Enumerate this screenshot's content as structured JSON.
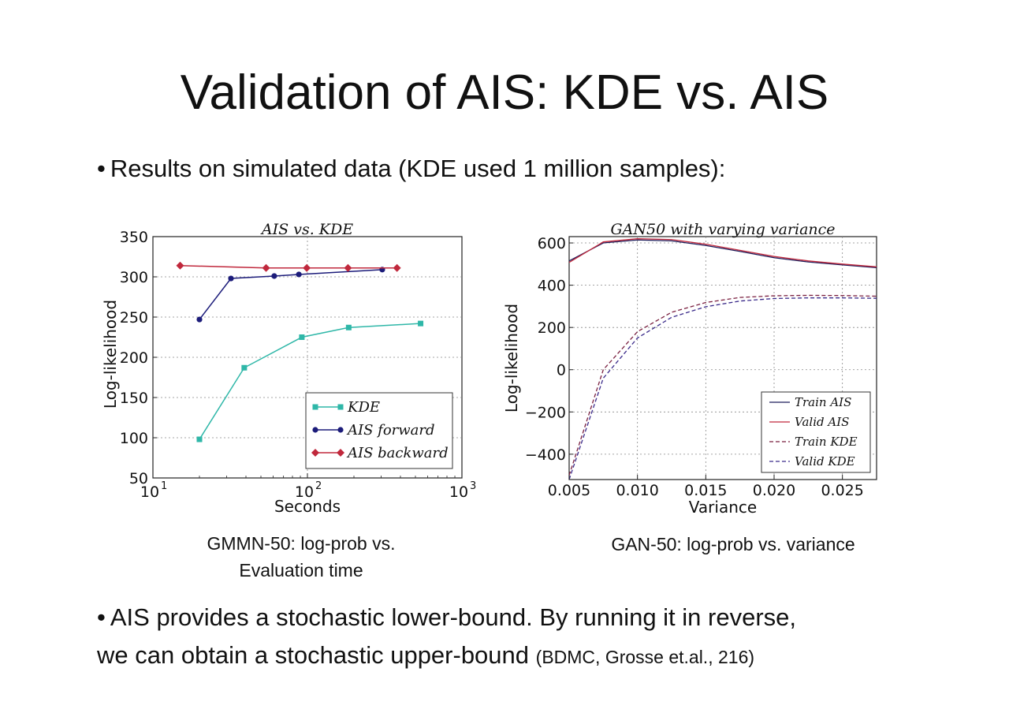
{
  "slide": {
    "title": "Validation of AIS: KDE vs. AIS",
    "bullet1": "Results on simulated data (KDE used 1 million samples):",
    "bullet2_line1": "AIS provides a stochastic lower-bound. By running it in reverse,",
    "bullet2_line2": "we can obtain a stochastic upper-bound",
    "bullet2_citation": "(BDMC, Grosse et.al., 216)",
    "bullet_symbol": "•",
    "caption_left_line1": "GMMN-50: log-prob vs.",
    "caption_left_line2": "Evaluation time",
    "caption_right": "GAN-50: log-prob vs. variance"
  },
  "chart_data": [
    {
      "type": "line",
      "title": "AIS vs. KDE",
      "xlabel": "Seconds",
      "ylabel": "Log-likelihood",
      "xscale": "log",
      "xlim": [
        10,
        1000
      ],
      "ylim": [
        50,
        350
      ],
      "xticks": [
        "10^1",
        "10^2",
        "10^3"
      ],
      "yticks": [
        "50",
        "100",
        "150",
        "200",
        "250",
        "300",
        "350"
      ],
      "grid": true,
      "legend_position": "lower-right",
      "series": [
        {
          "name": "KDE",
          "color": "#2fb7a8",
          "marker": "square",
          "x": [
            20,
            39,
            92,
            185,
            540
          ],
          "y": [
            98,
            187,
            225,
            237,
            242
          ]
        },
        {
          "name": "AIS forward",
          "color": "#1c1c7a",
          "marker": "circle",
          "x": [
            20,
            32,
            61,
            88,
            305
          ],
          "y": [
            247,
            298,
            301,
            303,
            309
          ]
        },
        {
          "name": "AIS backward",
          "color": "#c0283c",
          "marker": "diamond",
          "x": [
            15,
            54,
            99,
            183,
            380
          ],
          "y": [
            314,
            311,
            311,
            311,
            311
          ]
        }
      ]
    },
    {
      "type": "line",
      "title": "GAN50 with varying variance",
      "xlabel": "Variance",
      "ylabel": "Log-likelihood",
      "xlim": [
        0.005,
        0.0275
      ],
      "ylim": [
        -520,
        630
      ],
      "xticks": [
        "0.005",
        "0.010",
        "0.015",
        "0.020",
        "0.025"
      ],
      "yticks": [
        "600",
        "400",
        "200",
        "0",
        "−200",
        "−400"
      ],
      "grid": true,
      "legend_position": "lower-right",
      "series": [
        {
          "name": "Train AIS",
          "color": "#1c1c5a",
          "style": "solid",
          "x": [
            0.005,
            0.0075,
            0.01,
            0.0125,
            0.015,
            0.0175,
            0.02,
            0.0225,
            0.025,
            0.0275
          ],
          "y": [
            515,
            600,
            614,
            610,
            588,
            560,
            530,
            510,
            496,
            483
          ]
        },
        {
          "name": "Valid AIS",
          "color": "#c0283c",
          "style": "solid",
          "x": [
            0.005,
            0.0075,
            0.01,
            0.0125,
            0.015,
            0.0175,
            0.02,
            0.0225,
            0.025,
            0.0275
          ],
          "y": [
            508,
            605,
            620,
            616,
            594,
            565,
            536,
            515,
            500,
            487
          ]
        },
        {
          "name": "Train KDE",
          "color": "#7a2040",
          "style": "dashed",
          "x": [
            0.005,
            0.0075,
            0.01,
            0.0125,
            0.015,
            0.0175,
            0.02,
            0.0225,
            0.025,
            0.0275
          ],
          "y": [
            -500,
            0,
            180,
            272,
            318,
            342,
            350,
            352,
            351,
            348
          ]
        },
        {
          "name": "Valid KDE",
          "color": "#3a2a8a",
          "style": "dashed",
          "x": [
            0.005,
            0.0075,
            0.01,
            0.0125,
            0.015,
            0.0175,
            0.02,
            0.0225,
            0.025,
            0.0275
          ],
          "y": [
            -520,
            -40,
            150,
            248,
            298,
            325,
            337,
            340,
            340,
            338
          ]
        }
      ]
    }
  ]
}
